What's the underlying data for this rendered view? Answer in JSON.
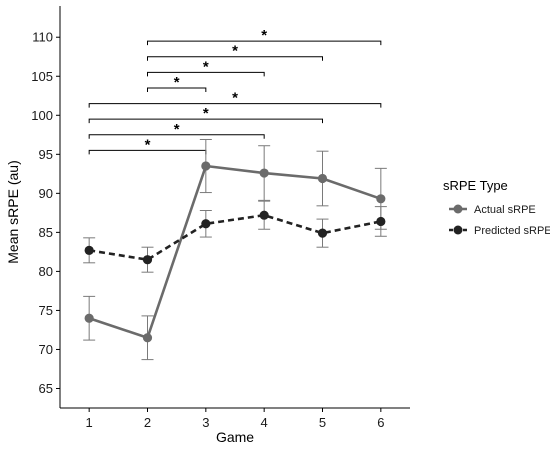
{
  "chart_data": {
    "type": "line",
    "xlabel": "Game",
    "ylabel": "Mean sRPE (au)",
    "x": [
      1,
      2,
      3,
      4,
      5,
      6
    ],
    "xticks": [
      "1",
      "2",
      "3",
      "4",
      "5",
      "6"
    ],
    "ylim": [
      62.5,
      114
    ],
    "yticks": [
      "65",
      "70",
      "75",
      "80",
      "85",
      "90",
      "95",
      "100",
      "105",
      "110"
    ],
    "yticks_values": [
      65,
      70,
      75,
      80,
      85,
      90,
      95,
      100,
      105,
      110
    ],
    "grid": false,
    "legend": {
      "title": "sRPE Type",
      "placement": "right"
    },
    "series": [
      {
        "name": "Actual sRPE",
        "color": "#6b6b6b",
        "line_style": "solid",
        "values": [
          74.0,
          71.5,
          93.5,
          92.6,
          91.9,
          89.3
        ],
        "error": [
          2.8,
          2.8,
          3.4,
          3.5,
          3.5,
          3.9
        ]
      },
      {
        "name": "Predicted sRPE",
        "color": "#222222",
        "line_style": "dashed",
        "values": [
          82.7,
          81.5,
          86.1,
          87.2,
          84.9,
          86.4
        ],
        "error": [
          1.6,
          1.6,
          1.7,
          1.8,
          1.8,
          1.9
        ]
      }
    ],
    "significance": [
      {
        "from": 2,
        "to": 6,
        "y": 109.5,
        "label": "*"
      },
      {
        "from": 2,
        "to": 5,
        "y": 107.5,
        "label": "*"
      },
      {
        "from": 2,
        "to": 4,
        "y": 105.5,
        "label": "*"
      },
      {
        "from": 2,
        "to": 3,
        "y": 103.5,
        "label": "*"
      },
      {
        "from": 1,
        "to": 6,
        "y": 101.5,
        "label": "*"
      },
      {
        "from": 1,
        "to": 5,
        "y": 99.5,
        "label": "*"
      },
      {
        "from": 1,
        "to": 4,
        "y": 97.5,
        "label": "*"
      },
      {
        "from": 1,
        "to": 3,
        "y": 95.5,
        "label": "*"
      }
    ]
  }
}
